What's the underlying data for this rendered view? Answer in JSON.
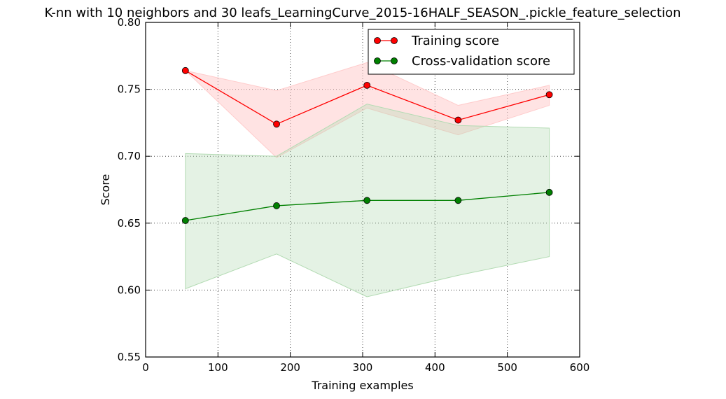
{
  "chart_data": {
    "type": "line",
    "title": "K-nn with 10 neighbors and 30 leafs_LearningCurve_2015-16HALF_SEASON_.pickle_feature_selection",
    "xlabel": "Training examples",
    "ylabel": "Score",
    "xlim": [
      0,
      600
    ],
    "ylim": [
      0.55,
      0.8
    ],
    "xticks": [
      0,
      100,
      200,
      300,
      400,
      500,
      600
    ],
    "xtick_labels": [
      "0",
      "100",
      "200",
      "300",
      "400",
      "500",
      "600"
    ],
    "yticks": [
      0.55,
      0.6,
      0.65,
      0.7,
      0.75,
      0.8
    ],
    "ytick_labels": [
      "0.55",
      "0.60",
      "0.65",
      "0.70",
      "0.75",
      "0.80"
    ],
    "grid": true,
    "legend_position": "top-right",
    "series": [
      {
        "name": "Training score",
        "color": "#ff0000",
        "band_color": "#ffcccc",
        "marker": "circle",
        "x": [
          55,
          181,
          306,
          432,
          558
        ],
        "y": [
          0.764,
          0.724,
          0.753,
          0.727,
          0.746
        ],
        "band_lower": [
          0.764,
          0.699,
          0.736,
          0.716,
          0.738
        ],
        "band_upper": [
          0.764,
          0.749,
          0.77,
          0.738,
          0.753
        ]
      },
      {
        "name": "Cross-validation score",
        "color": "#008000",
        "band_color": "#b3dbb3",
        "marker": "circle",
        "x": [
          55,
          181,
          306,
          432,
          558
        ],
        "y": [
          0.652,
          0.663,
          0.667,
          0.667,
          0.673
        ],
        "band_lower": [
          0.601,
          0.627,
          0.595,
          0.611,
          0.625
        ],
        "band_upper": [
          0.702,
          0.7,
          0.739,
          0.723,
          0.721
        ]
      }
    ]
  }
}
